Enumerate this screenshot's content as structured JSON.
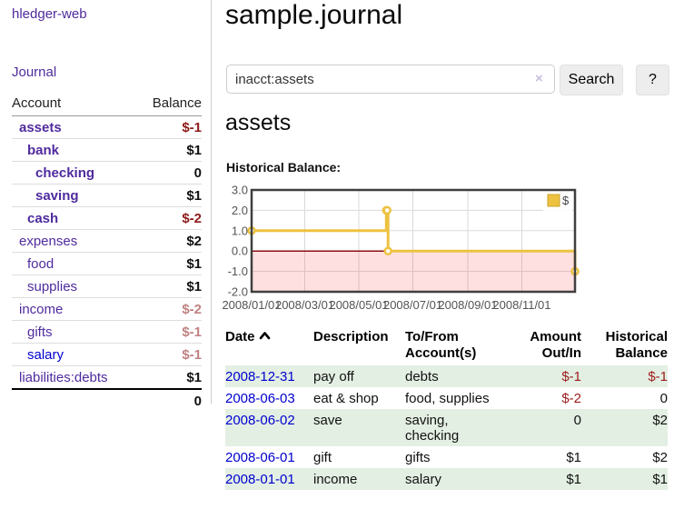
{
  "brand": "hledger-web",
  "nav": {
    "journal": "Journal"
  },
  "sidebar": {
    "col_account": "Account",
    "col_balance": "Balance",
    "rows": [
      {
        "name": "assets",
        "indent": 1,
        "balance": "$-1",
        "bold": true,
        "neg": "strong"
      },
      {
        "name": "bank",
        "indent": 2,
        "balance": "$1",
        "bold": true,
        "neg": null
      },
      {
        "name": "checking",
        "indent": 3,
        "balance": "0",
        "bold": true,
        "neg": null
      },
      {
        "name": "saving",
        "indent": 3,
        "balance": "$1",
        "bold": true,
        "neg": null
      },
      {
        "name": "cash",
        "indent": 2,
        "balance": "$-2",
        "bold": true,
        "neg": "strong"
      },
      {
        "name": "expenses",
        "indent": 1,
        "balance": "$2",
        "bold": false,
        "neg": null
      },
      {
        "name": "food",
        "indent": 2,
        "balance": "$1",
        "bold": false,
        "neg": null
      },
      {
        "name": "supplies",
        "indent": 2,
        "balance": "$1",
        "bold": false,
        "neg": null
      },
      {
        "name": "income",
        "indent": 1,
        "balance": "$-2",
        "bold": false,
        "neg": "faded"
      },
      {
        "name": "gifts",
        "indent": 2,
        "balance": "$-1",
        "bold": false,
        "neg": "faded"
      },
      {
        "name": "salary",
        "indent": 2,
        "balance": "$-1",
        "bold": false,
        "neg": "faded",
        "unvisited": true
      },
      {
        "name": "liabilities:debts",
        "indent": 1,
        "balance": "$1",
        "bold": false,
        "neg": null,
        "last": true
      }
    ],
    "total": "0"
  },
  "main": {
    "title": "sample.journal",
    "search": {
      "value": "inacct:assets",
      "clear_icon": "×",
      "search_button": "Search",
      "help_button": "?"
    },
    "account_heading": "assets",
    "chart_label": "Historical Balance:"
  },
  "chart_data": {
    "type": "line",
    "title": "Historical Balance",
    "step": true,
    "series": [
      {
        "name": "$",
        "x": [
          "2008-01-01",
          "2008-06-01",
          "2008-06-02",
          "2008-06-03",
          "2008-12-31"
        ],
        "y": [
          1,
          2,
          2,
          0,
          -1
        ]
      }
    ],
    "xlim": [
      "2008-01-01",
      "2008-12-31"
    ],
    "ylim": [
      -2,
      3
    ],
    "yticks": [
      3,
      2,
      1,
      0,
      -1,
      -2
    ],
    "ytick_labels": [
      "3.0",
      "2.0",
      "1.0",
      "0.0",
      "-1.0",
      "-2.0"
    ],
    "xticks": [
      {
        "date": "2008-01-01",
        "label": "2008/01/01"
      },
      {
        "date": "2008-03-01",
        "label": "2008/03/01"
      },
      {
        "date": "2008-05-01",
        "label": "2008/05/01"
      },
      {
        "date": "2008-07-01",
        "label": "2008/07/01"
      },
      {
        "date": "2008-09-01",
        "label": "2008/09/01"
      },
      {
        "date": "2008-11-01",
        "label": "2008/11/01"
      }
    ],
    "legend": {
      "label": "$",
      "position": "top-right"
    },
    "negative_region": true,
    "grid": true,
    "colors": {
      "series": "#edc240",
      "marker_fill": "#ffffff",
      "zero_line": "#8f0e0e",
      "negative_fill": "rgba(255,0,0,0.12)",
      "grid": "#dadada",
      "border": "#3f3f3f",
      "tick_text": "#545454"
    }
  },
  "register": {
    "headers": {
      "date": "Date",
      "description": "Description",
      "accounts": "To/From Account(s)",
      "amount": "Amount Out/In",
      "balance": "Historical Balance"
    },
    "rows": [
      {
        "date": "2008-12-31",
        "description": "pay off",
        "accounts": "debts",
        "amount": "$-1",
        "balance": "$-1"
      },
      {
        "date": "2008-06-03",
        "description": "eat & shop",
        "accounts": "food, supplies",
        "amount": "$-2",
        "balance": "0"
      },
      {
        "date": "2008-06-02",
        "description": "save",
        "accounts": "saving,\nchecking",
        "amount": "0",
        "balance": "$2"
      },
      {
        "date": "2008-06-01",
        "description": "gift",
        "accounts": "gifts",
        "amount": "$1",
        "balance": "$2"
      },
      {
        "date": "2008-01-01",
        "description": "income",
        "accounts": "salary",
        "amount": "$1",
        "balance": "$1"
      }
    ]
  }
}
